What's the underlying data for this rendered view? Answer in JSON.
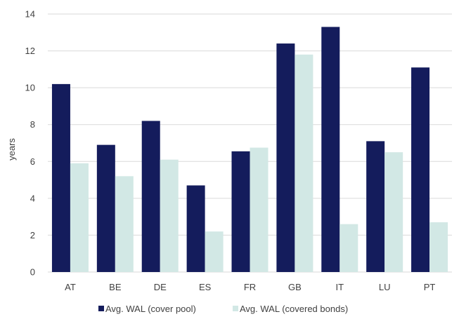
{
  "chart_data": {
    "type": "bar",
    "ylabel": "years",
    "ylim": [
      0,
      14
    ],
    "yticks": [
      0,
      2,
      4,
      6,
      8,
      10,
      12,
      14
    ],
    "grid": true,
    "legend_position": "bottom",
    "categories": [
      "AT",
      "BE",
      "DE",
      "ES",
      "FR",
      "GB",
      "IT",
      "LU",
      "PT"
    ],
    "series": [
      {
        "name": "Avg. WAL (cover pool)",
        "color": "#141c5c",
        "values": [
          10.2,
          6.9,
          8.2,
          4.7,
          6.55,
          12.4,
          13.3,
          7.1,
          11.1
        ]
      },
      {
        "name": "Avg. WAL (covered bonds)",
        "color": "#d2e8e5",
        "values": [
          5.9,
          5.2,
          6.1,
          2.2,
          6.75,
          11.8,
          2.6,
          6.5,
          2.7
        ]
      }
    ]
  }
}
